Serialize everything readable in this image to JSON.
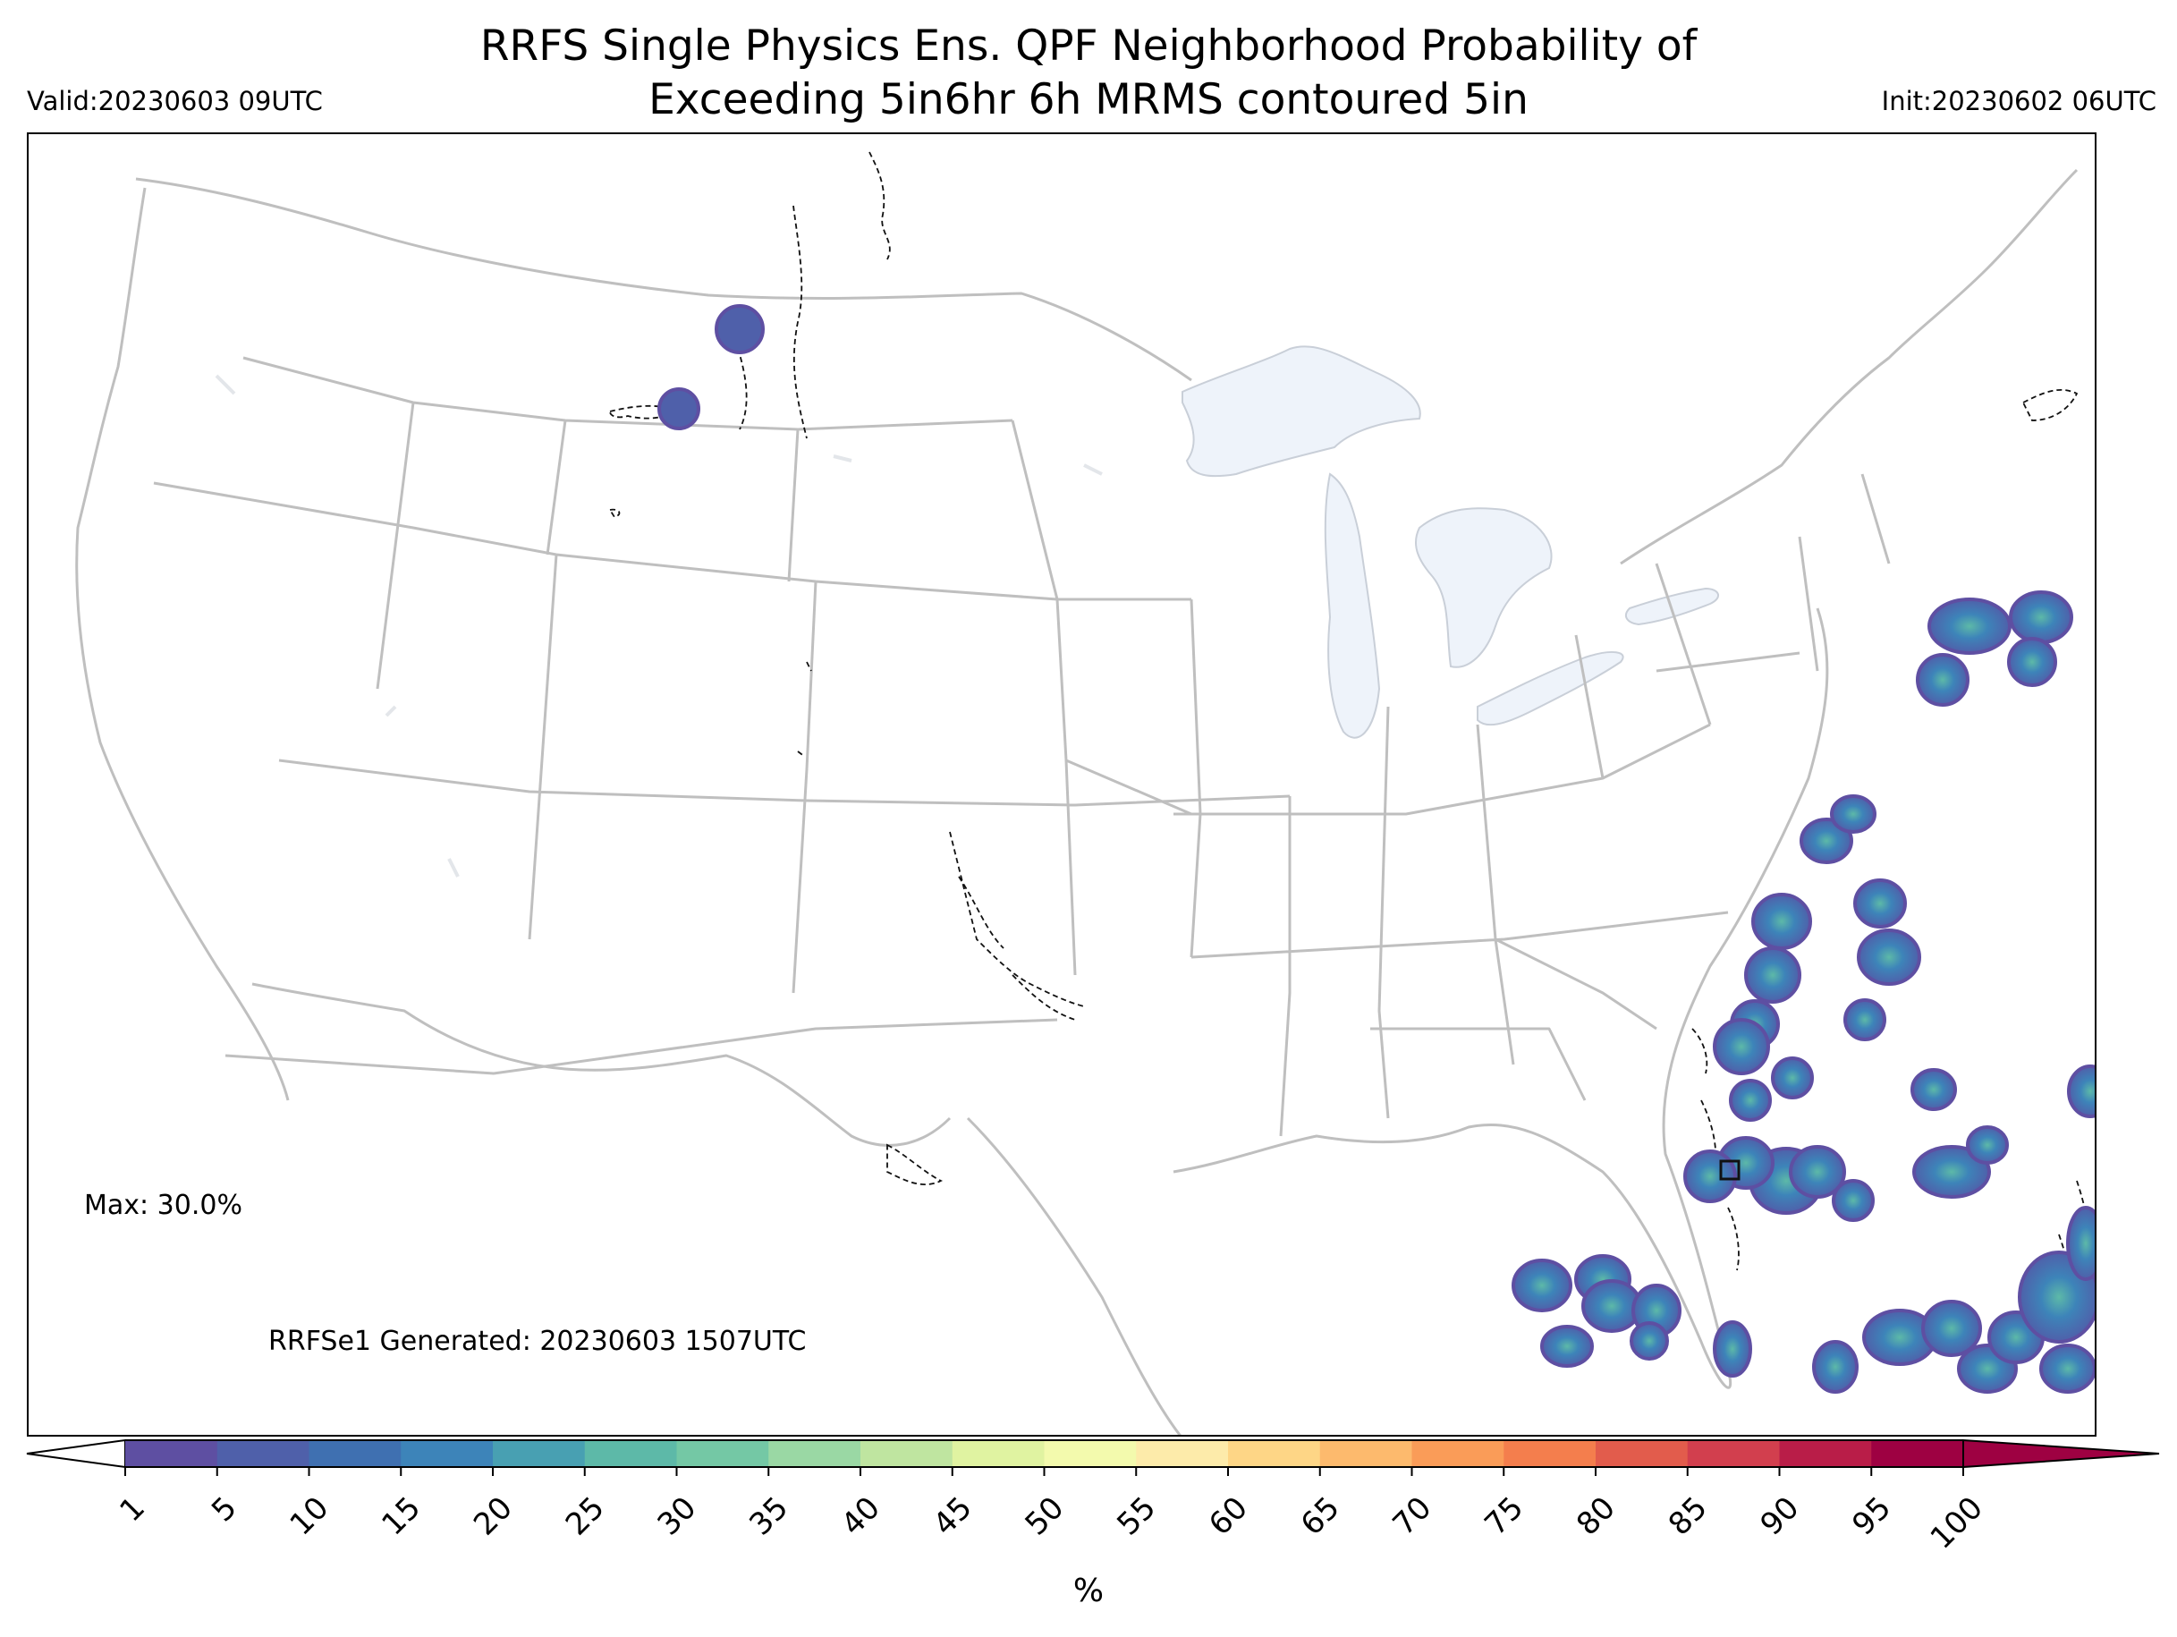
{
  "header": {
    "title_line1": "RRFS Single Physics Ens. QPF Neighborhood Probability of",
    "title_line2": "Exceeding 5in6hr 6h MRMS contoured 5in",
    "valid": "Valid:20230603 09UTC",
    "init": "Init:20230602 06UTC"
  },
  "map": {
    "max_label": "Max: 30.0%",
    "generated_label": "RRFSe1 Generated: 20230603 1507UTC",
    "boundary_color": "#bfbfbf",
    "lake_color": "#eef3fa",
    "contour_style": "black dashed"
  },
  "colorbar": {
    "ticks": [
      "1",
      "5",
      "10",
      "15",
      "20",
      "25",
      "30",
      "35",
      "40",
      "45",
      "50",
      "55",
      "60",
      "65",
      "70",
      "75",
      "80",
      "85",
      "90",
      "95",
      "100"
    ],
    "colors": [
      "#5e4fa2",
      "#4f60aa",
      "#3f70b1",
      "#3d84b9",
      "#48a0b2",
      "#5db9a8",
      "#74c8a5",
      "#9ad8a4",
      "#bfe5a0",
      "#e0f3a1",
      "#f3faad",
      "#fdebaa",
      "#fed686",
      "#fdba6d",
      "#fa9c58",
      "#f47e4d",
      "#e25c4c",
      "#d23f4e",
      "#b91d48",
      "#9e0142"
    ],
    "under_color": "#ffffff",
    "over_color": "#9e0142",
    "unit": "%"
  }
}
